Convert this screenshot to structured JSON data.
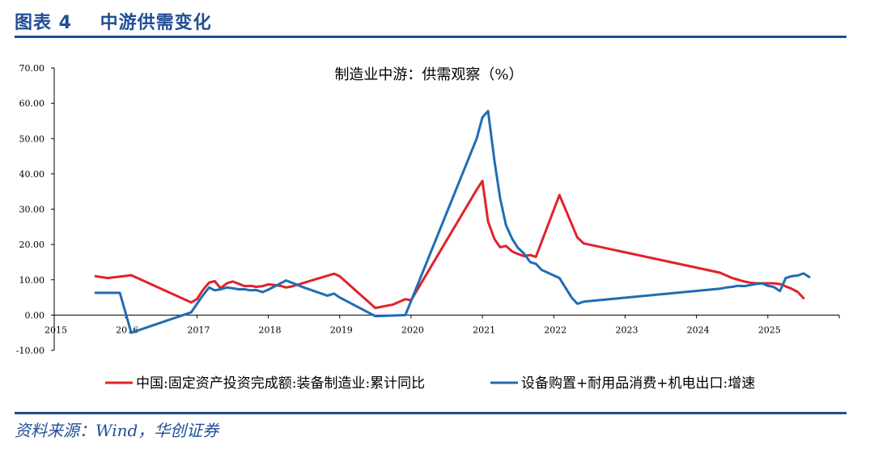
{
  "header": {
    "title": "图表 4    中游供需变化"
  },
  "footer": {
    "source": "资料来源：Wind，华创证券"
  },
  "chart_data": {
    "type": "line",
    "title": "制造业中游：供需观察（%）",
    "ylim": [
      -10,
      70
    ],
    "yticks": [
      "70.00",
      "60.00",
      "50.00",
      "40.00",
      "30.00",
      "20.00",
      "10.00",
      "0.00",
      "-10.00"
    ],
    "ytick_values": [
      70,
      60,
      50,
      40,
      30,
      20,
      10,
      0,
      -10
    ],
    "xlim": [
      2015,
      2026
    ],
    "xticks": [
      "2015",
      "2016",
      "2017",
      "2018",
      "2019",
      "2020",
      "2021",
      "2022",
      "2023",
      "2024",
      "2025"
    ],
    "xtick_values": [
      2015,
      2016,
      2017,
      2018,
      2019,
      2020,
      2021,
      2022,
      2023,
      2024,
      2025
    ],
    "legend_position": "bottom",
    "series": [
      {
        "name": "中国:固定资产投资完成额:装备制造业:累计同比",
        "color": "#e0222b",
        "points": [
          [
            2015.58,
            11.0
          ],
          [
            2015.75,
            10.5
          ],
          [
            2016.08,
            11.3
          ],
          [
            2016.92,
            3.6
          ],
          [
            2017.0,
            4.5
          ],
          [
            2017.08,
            7.0
          ],
          [
            2017.17,
            9.2
          ],
          [
            2017.25,
            9.6
          ],
          [
            2017.33,
            7.6
          ],
          [
            2017.42,
            9.0
          ],
          [
            2017.5,
            9.5
          ],
          [
            2017.58,
            8.9
          ],
          [
            2017.67,
            8.2
          ],
          [
            2017.75,
            8.3
          ],
          [
            2017.83,
            8.0
          ],
          [
            2017.92,
            8.2
          ],
          [
            2018.0,
            8.7
          ],
          [
            2018.08,
            8.5
          ],
          [
            2018.17,
            8.3
          ],
          [
            2018.25,
            7.8
          ],
          [
            2018.33,
            8.1
          ],
          [
            2018.92,
            11.7
          ],
          [
            2019.0,
            11.0
          ],
          [
            2019.5,
            2.0
          ],
          [
            2019.75,
            3.0
          ],
          [
            2019.92,
            4.5
          ],
          [
            2020.0,
            4.2
          ],
          [
            2020.92,
            35.5
          ],
          [
            2021.0,
            38.0
          ],
          [
            2021.08,
            26.5
          ],
          [
            2021.17,
            21.5
          ],
          [
            2021.25,
            19.2
          ],
          [
            2021.33,
            19.6
          ],
          [
            2021.42,
            18.0
          ],
          [
            2021.5,
            17.3
          ],
          [
            2021.58,
            16.7
          ],
          [
            2021.67,
            17.0
          ],
          [
            2021.75,
            16.5
          ],
          [
            2022.08,
            34.0
          ],
          [
            2022.33,
            22.0
          ],
          [
            2022.42,
            20.3
          ],
          [
            2024.33,
            12.0
          ],
          [
            2024.5,
            10.5
          ],
          [
            2024.67,
            9.5
          ],
          [
            2024.75,
            9.2
          ],
          [
            2024.83,
            9.0
          ],
          [
            2024.92,
            9.0
          ],
          [
            2025.08,
            9.0
          ],
          [
            2025.17,
            8.8
          ],
          [
            2025.33,
            7.5
          ],
          [
            2025.42,
            6.5
          ],
          [
            2025.5,
            4.8
          ]
        ]
      },
      {
        "name": "设备购置+耐用品消费+机电出口:增速",
        "color": "#1f6db5",
        "points": [
          [
            2015.58,
            6.3
          ],
          [
            2015.75,
            6.3
          ],
          [
            2015.92,
            6.3
          ],
          [
            2016.08,
            -5.0
          ],
          [
            2016.92,
            0.8
          ],
          [
            2017.08,
            5.5
          ],
          [
            2017.17,
            7.8
          ],
          [
            2017.25,
            7.0
          ],
          [
            2017.33,
            7.3
          ],
          [
            2017.42,
            7.8
          ],
          [
            2017.5,
            7.6
          ],
          [
            2017.58,
            7.3
          ],
          [
            2017.67,
            7.3
          ],
          [
            2017.75,
            7.0
          ],
          [
            2017.83,
            7.1
          ],
          [
            2017.92,
            6.5
          ],
          [
            2018.0,
            7.2
          ],
          [
            2018.25,
            9.8
          ],
          [
            2018.5,
            7.8
          ],
          [
            2018.83,
            5.5
          ],
          [
            2018.92,
            6.1
          ],
          [
            2019.0,
            5.0
          ],
          [
            2019.5,
            -0.3
          ],
          [
            2019.92,
            0.0
          ],
          [
            2020.92,
            50.0
          ],
          [
            2021.0,
            56.0
          ],
          [
            2021.08,
            57.8
          ],
          [
            2021.17,
            43.5
          ],
          [
            2021.25,
            33.0
          ],
          [
            2021.33,
            25.5
          ],
          [
            2021.42,
            21.5
          ],
          [
            2021.5,
            19.0
          ],
          [
            2021.58,
            17.5
          ],
          [
            2021.67,
            15.0
          ],
          [
            2021.75,
            14.5
          ],
          [
            2021.83,
            12.8
          ],
          [
            2022.08,
            10.5
          ],
          [
            2022.25,
            5.0
          ],
          [
            2022.33,
            3.2
          ],
          [
            2022.42,
            3.8
          ],
          [
            2024.33,
            7.5
          ],
          [
            2024.42,
            7.8
          ],
          [
            2024.5,
            8.0
          ],
          [
            2024.58,
            8.3
          ],
          [
            2024.67,
            8.2
          ],
          [
            2024.75,
            8.5
          ],
          [
            2024.83,
            8.8
          ],
          [
            2024.92,
            9.0
          ],
          [
            2025.0,
            8.3
          ],
          [
            2025.08,
            8.0
          ],
          [
            2025.17,
            6.8
          ],
          [
            2025.25,
            10.5
          ],
          [
            2025.33,
            11.0
          ],
          [
            2025.42,
            11.2
          ],
          [
            2025.5,
            11.8
          ],
          [
            2025.58,
            10.8
          ]
        ]
      }
    ]
  }
}
